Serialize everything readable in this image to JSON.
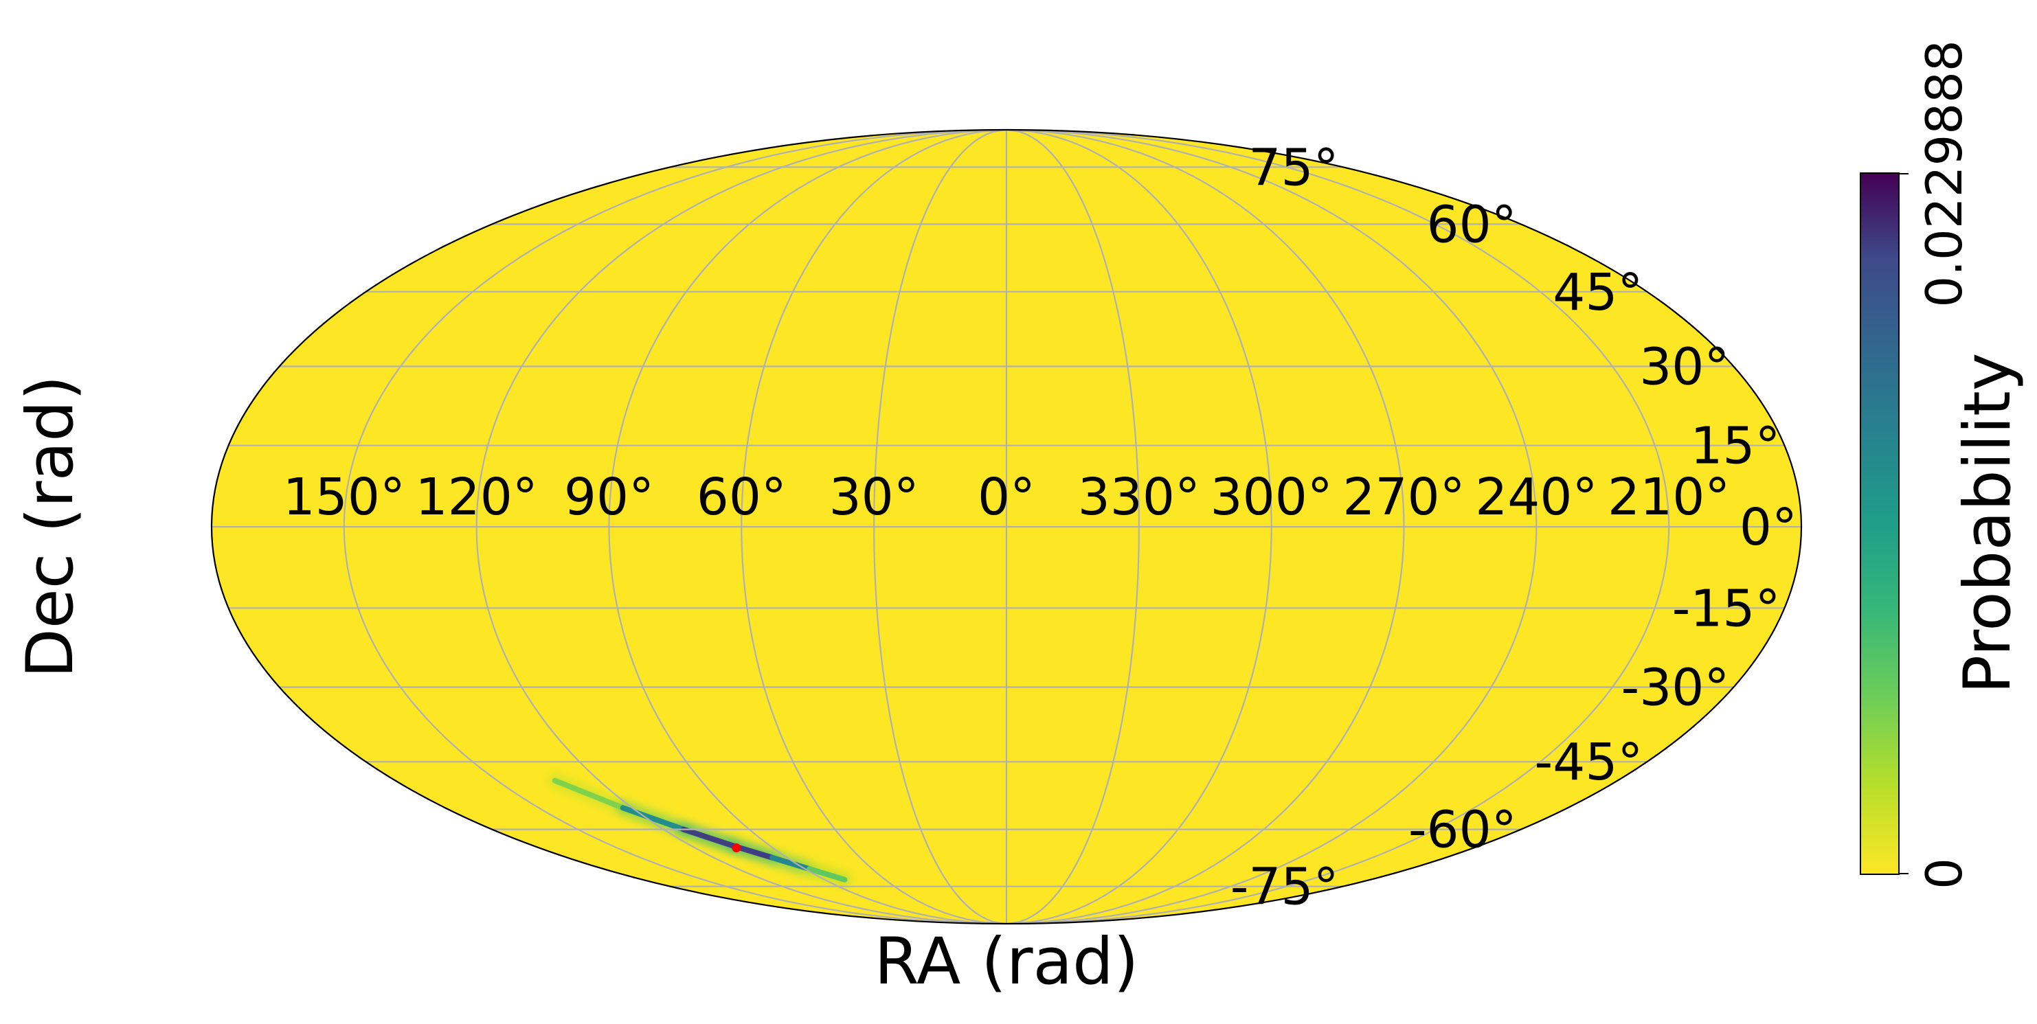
{
  "chart_data": {
    "type": "heatmap",
    "projection": "mollweide",
    "title": "",
    "xlabel": "RA (rad)",
    "ylabel": "Dec (rad)",
    "x_ticks": [
      "150°",
      "120°",
      "90°",
      "60°",
      "30°",
      "0°",
      "330°",
      "300°",
      "270°",
      "240°",
      "210°"
    ],
    "y_ticks": [
      "75°",
      "60°",
      "45°",
      "30°",
      "15°",
      "0°",
      "-15°",
      "-30°",
      "-45°",
      "-60°",
      "-75°"
    ],
    "x_tick_values_deg": [
      150,
      120,
      90,
      60,
      30,
      0,
      330,
      300,
      270,
      240,
      210
    ],
    "y_tick_values_deg": [
      75,
      60,
      45,
      30,
      15,
      0,
      -15,
      -30,
      -45,
      -60,
      -75
    ],
    "grid": true,
    "background_value": 0,
    "colorbar": {
      "label": "Probability",
      "min": 0,
      "max": 0.0229888,
      "tick_labels": [
        "0",
        "0.0229888"
      ],
      "colormap": "viridis_r",
      "position": "right"
    },
    "probability_band": {
      "description_values": "arc of elevated probability along the southern edge",
      "points": [
        {
          "ra_deg": 133,
          "dec_deg": -49,
          "probability": 0.002
        },
        {
          "ra_deg": 123,
          "dec_deg": -55,
          "probability": 0.008
        },
        {
          "ra_deg": 113,
          "dec_deg": -60,
          "probability": 0.018
        },
        {
          "ra_deg": 104,
          "dec_deg": -64,
          "probability": 0.0229888
        },
        {
          "ra_deg": 96,
          "dec_deg": -67,
          "probability": 0.018
        },
        {
          "ra_deg": 88,
          "dec_deg": -70,
          "probability": 0.01
        },
        {
          "ra_deg": 80,
          "dec_deg": -73,
          "probability": 0.003
        }
      ]
    },
    "marker": {
      "ra_deg": 104,
      "dec_deg": -64.5,
      "color": "#ff0000"
    }
  },
  "colors": {
    "background_fill": "#fde725",
    "grid": "#b0b0b0",
    "outline": "#000000",
    "marker": "#ff0000"
  }
}
